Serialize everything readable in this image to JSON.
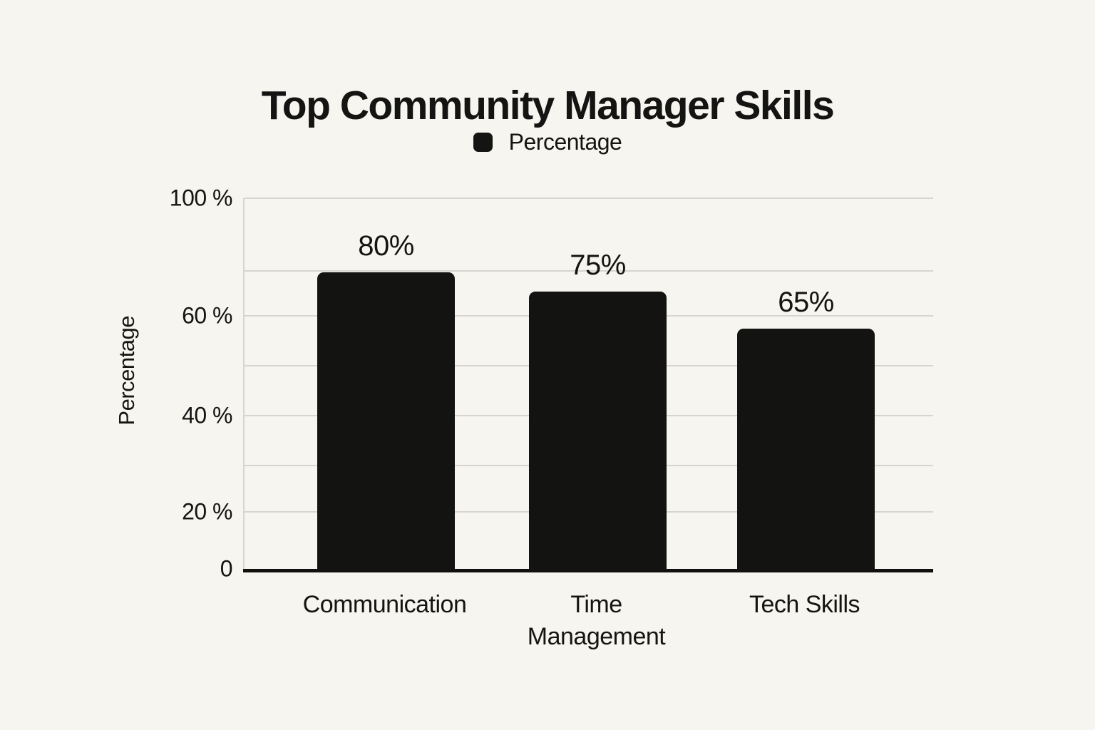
{
  "page": {
    "background": "#F7F5EF"
  },
  "chart_data": {
    "type": "bar",
    "title": "Top Community Manager Skills",
    "legend": {
      "label": "Percentage",
      "swatch_color": "#141413",
      "position": "top"
    },
    "ylabel": "Percentage",
    "xlabel": "",
    "categories": [
      "Communication",
      "Time Management",
      "Tech Skills"
    ],
    "values": [
      80,
      75,
      65
    ],
    "bar_labels": [
      "80%",
      "75%",
      "65%"
    ],
    "yticks": [
      "100 %",
      "60 %",
      "40 %",
      "20 %",
      "0"
    ],
    "ylim": [
      0,
      100
    ],
    "grid": true,
    "bar_color": "#131311",
    "gridline_color": "#D8D5CE",
    "axis_line_color": "#11100E",
    "text_color": "#141413"
  }
}
